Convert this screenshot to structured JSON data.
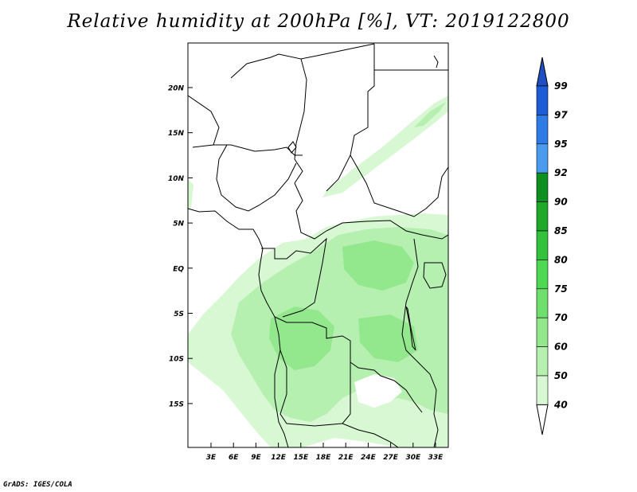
{
  "title": "Relative humidity at 200hPa [%], VT: 2019122800",
  "credit": "GrADS: IGES/COLA",
  "map": {
    "lat_labels": [
      "20N",
      "15N",
      "10N",
      "5N",
      "EQ",
      "5S",
      "10S",
      "15S"
    ],
    "lon_labels": [
      "3E",
      "6E",
      "9E",
      "12E",
      "15E",
      "18E",
      "21E",
      "24E",
      "27E",
      "30E",
      "33E"
    ]
  },
  "colorbar": {
    "levels": [
      "99",
      "97",
      "95",
      "92",
      "90",
      "85",
      "80",
      "75",
      "70",
      "60",
      "50",
      "40"
    ],
    "colors": [
      "#1e5bd6",
      "#2f7be6",
      "#4a9aee",
      "#0f8f1f",
      "#1fa829",
      "#34c23c",
      "#4fd852",
      "#6fe06d",
      "#93e88e",
      "#b6f0b0",
      "#d8f7d3",
      "#f0fcee"
    ],
    "top_color": "#1f4fc2",
    "bottom_color": "#ffffff"
  }
}
